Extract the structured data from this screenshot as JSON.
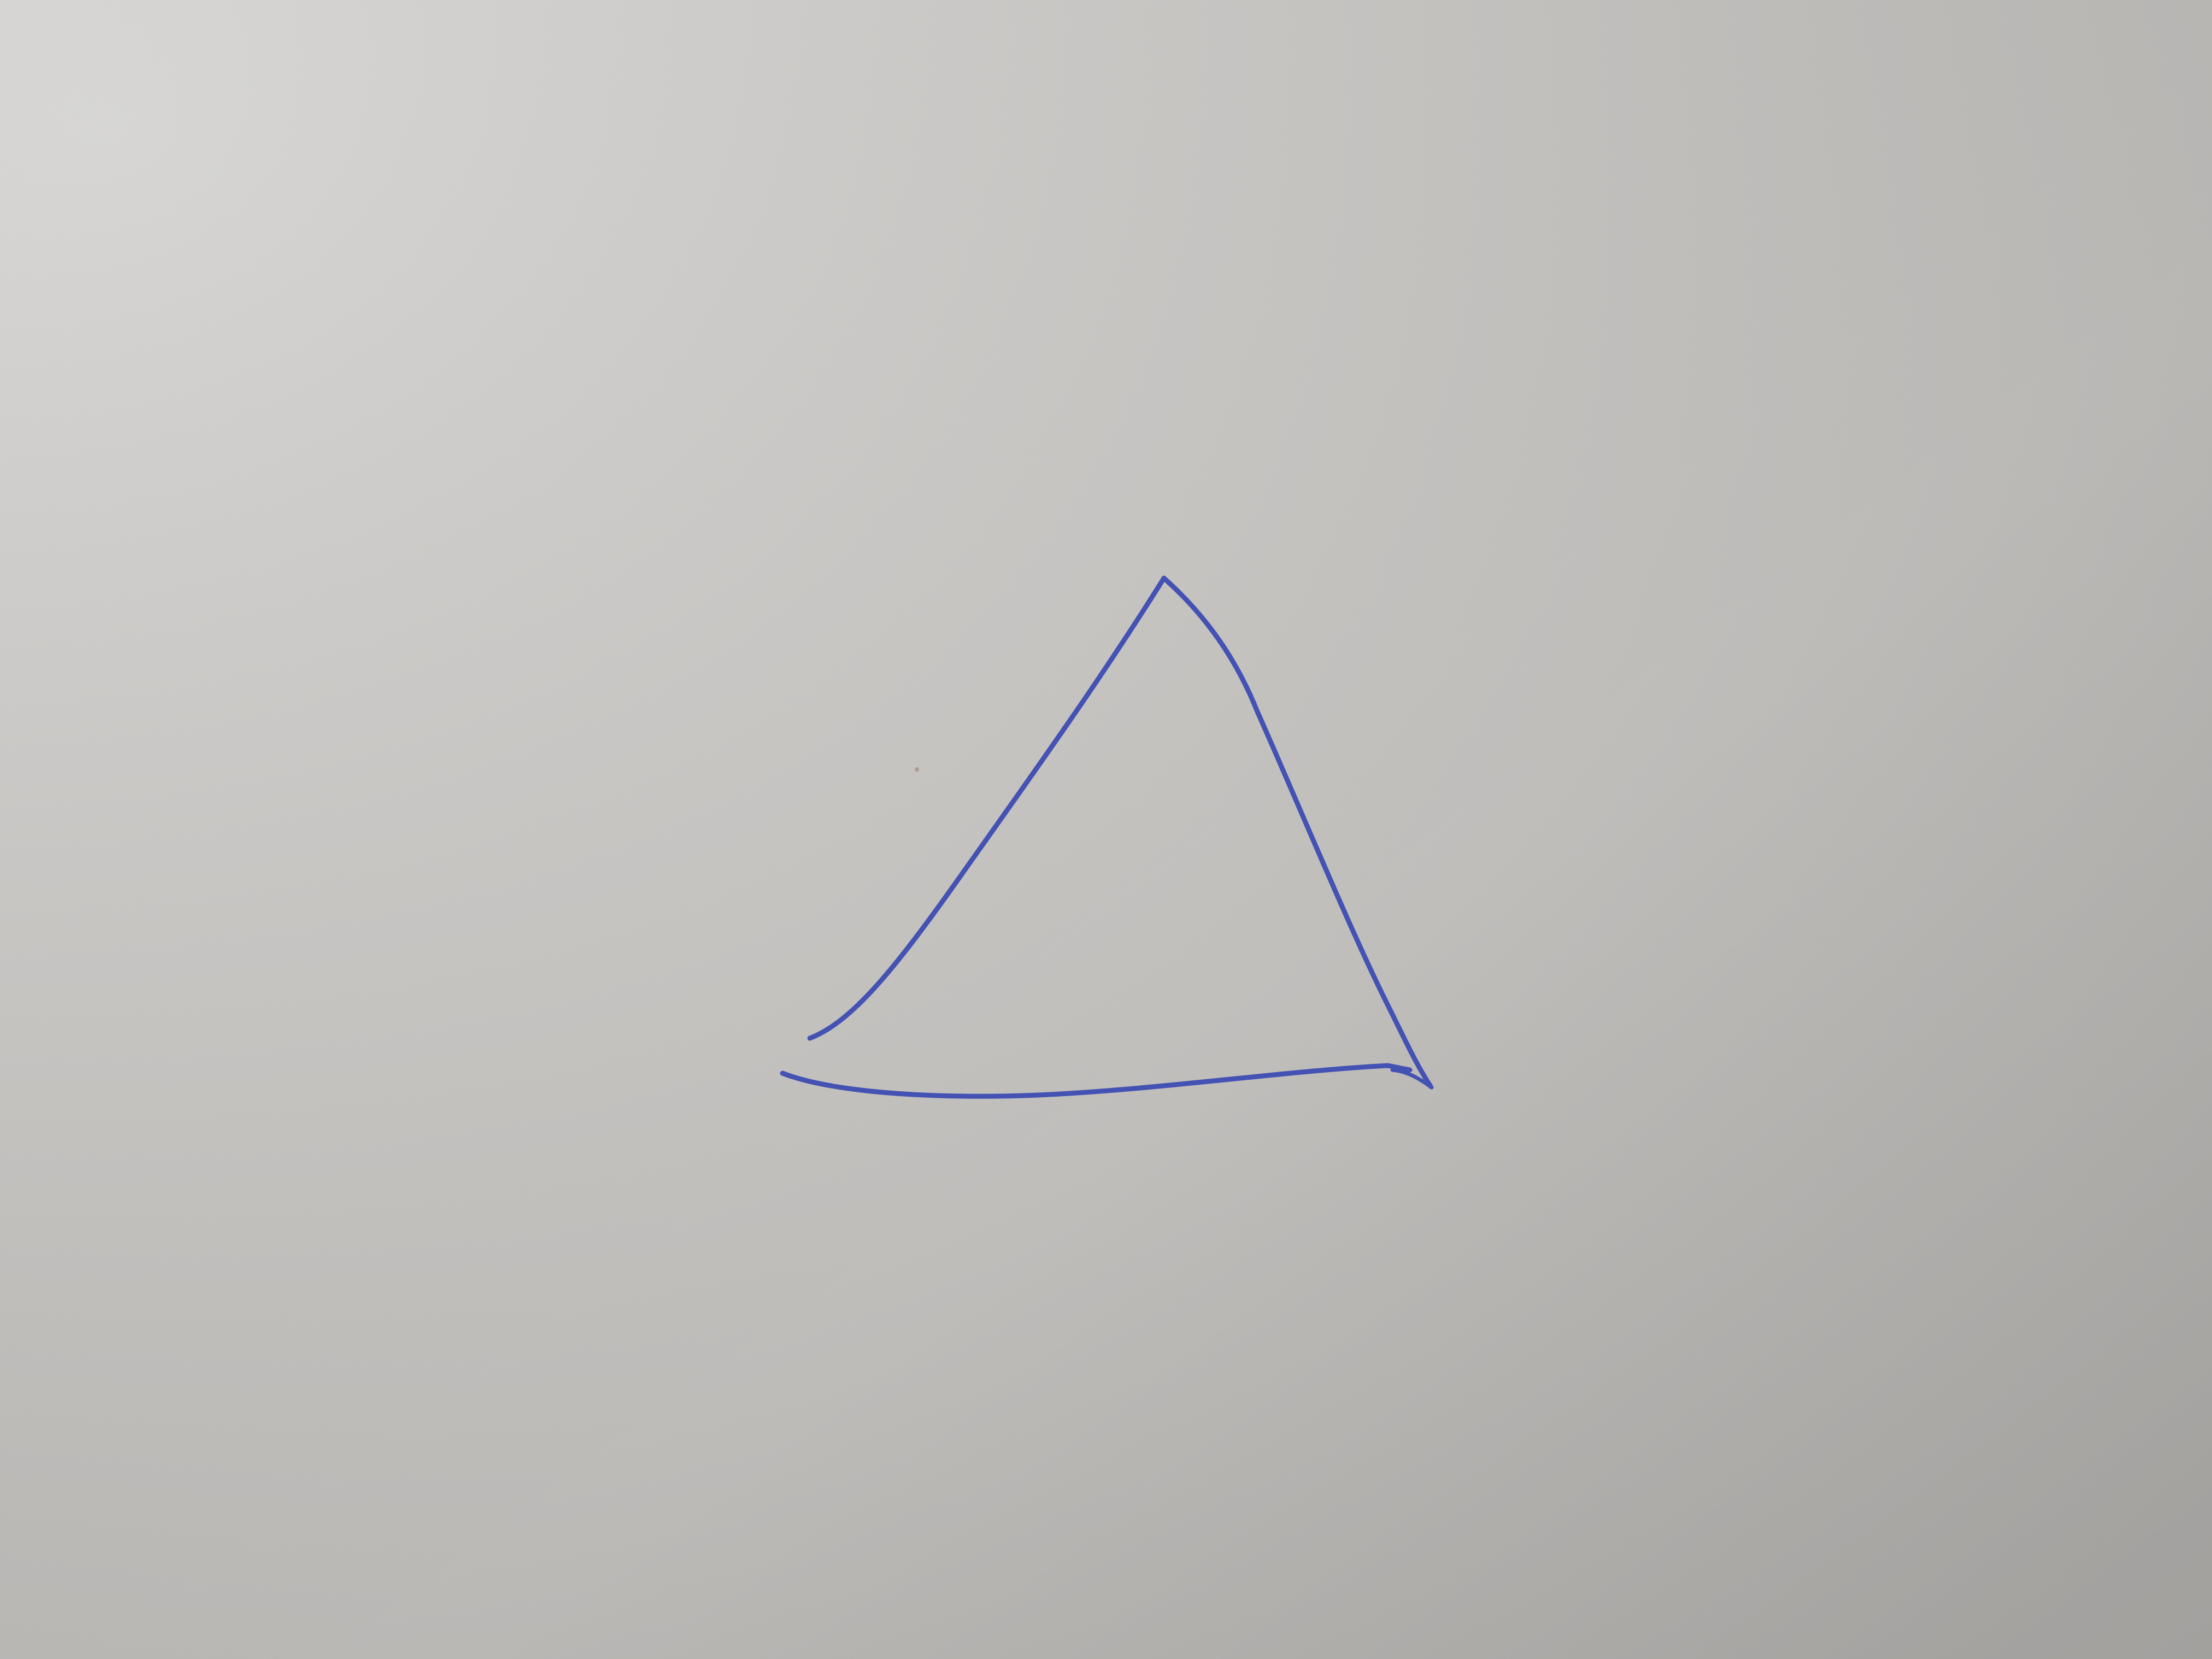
{
  "scene": {
    "subject": "hand-drawn-triangle",
    "paper_colors": {
      "bright": "#d2d1cf",
      "mid": "#c5c3c0",
      "shadow": "#a9a7a4"
    },
    "ink_color": "#4452b4"
  }
}
